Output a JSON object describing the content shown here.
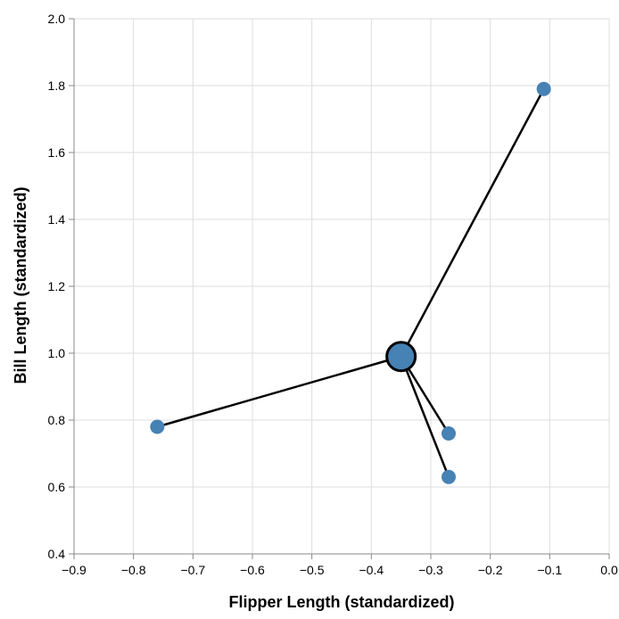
{
  "chart_data": {
    "type": "scatter",
    "xlabel": "Flipper Length (standardized)",
    "ylabel": "Bill Length (standardized)",
    "xlim": [
      -0.9,
      0.0
    ],
    "ylim": [
      0.4,
      2.0
    ],
    "x_ticks": [
      -0.9,
      -0.8,
      -0.7,
      -0.6,
      -0.5,
      -0.4,
      -0.3,
      -0.2,
      -0.1,
      0.0
    ],
    "x_tick_labels": [
      "−0.9",
      "−0.8",
      "−0.7",
      "−0.6",
      "−0.5",
      "−0.4",
      "−0.3",
      "−0.2",
      "−0.1",
      "0.0"
    ],
    "y_ticks": [
      0.4,
      0.6,
      0.8,
      1.0,
      1.2,
      1.4,
      1.6,
      1.8,
      2.0
    ],
    "y_tick_labels": [
      "0.4",
      "0.6",
      "0.8",
      "1.0",
      "1.2",
      "1.4",
      "1.6",
      "1.8",
      "2.0"
    ],
    "grid": true,
    "center": {
      "x": -0.35,
      "y": 0.99
    },
    "points": [
      {
        "x": -0.11,
        "y": 1.79
      },
      {
        "x": -0.76,
        "y": 0.78
      },
      {
        "x": -0.27,
        "y": 0.76
      },
      {
        "x": -0.27,
        "y": 0.63
      }
    ],
    "colors": {
      "point": "#4682b4",
      "line": "#000000",
      "center_stroke": "#000000"
    }
  }
}
